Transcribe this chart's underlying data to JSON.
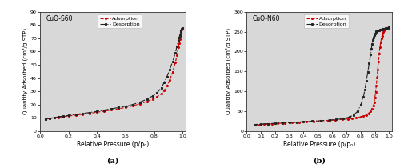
{
  "panel_a": {
    "label": "CuO-S60",
    "xlabel": "Relative Pressure (p/pₒ)",
    "ylabel": "Quantity Adsorbed (cm³/g STP)",
    "ylim": [
      0,
      90
    ],
    "xlim": [
      0.0,
      1.02
    ],
    "yticks": [
      0,
      10,
      20,
      30,
      40,
      50,
      60,
      70,
      80,
      90
    ],
    "xticks": [
      0.0,
      0.2,
      0.4,
      0.6,
      0.8,
      1.0
    ],
    "adsorption_color": "#cc0000",
    "desorption_color": "#222222",
    "legend_label_ads": "Adsorption",
    "legend_label_des": "Desorption",
    "p_ads": [
      0.04,
      0.07,
      0.1,
      0.13,
      0.16,
      0.2,
      0.25,
      0.3,
      0.35,
      0.4,
      0.45,
      0.5,
      0.55,
      0.6,
      0.65,
      0.7,
      0.75,
      0.79,
      0.82,
      0.85,
      0.87,
      0.89,
      0.91,
      0.93,
      0.95,
      0.96,
      0.97,
      0.975,
      0.98,
      0.985,
      0.99,
      0.995,
      1.0
    ],
    "q_ads": [
      9.0,
      9.5,
      10.0,
      10.4,
      10.8,
      11.3,
      12.0,
      12.7,
      13.4,
      14.2,
      15.0,
      15.9,
      16.8,
      17.8,
      19.0,
      20.5,
      22.3,
      24.0,
      25.8,
      28.0,
      30.5,
      34.0,
      38.5,
      44.5,
      52.0,
      57.0,
      63.0,
      66.5,
      69.5,
      72.0,
      74.5,
      76.5,
      78.0
    ],
    "p_des": [
      1.0,
      0.995,
      0.99,
      0.985,
      0.98,
      0.975,
      0.97,
      0.96,
      0.95,
      0.93,
      0.91,
      0.89,
      0.87,
      0.85,
      0.82,
      0.79,
      0.75,
      0.7,
      0.65,
      0.6,
      0.55,
      0.5,
      0.45,
      0.4,
      0.35,
      0.3,
      0.25,
      0.2,
      0.16,
      0.13,
      0.1,
      0.07,
      0.04
    ],
    "q_des": [
      78.0,
      77.0,
      76.0,
      74.5,
      72.5,
      70.5,
      68.0,
      64.0,
      59.0,
      52.5,
      46.5,
      41.0,
      36.5,
      32.5,
      28.8,
      26.5,
      24.0,
      21.8,
      20.0,
      18.8,
      17.7,
      16.8,
      15.8,
      14.8,
      14.0,
      13.3,
      12.5,
      11.8,
      11.2,
      10.7,
      10.2,
      9.7,
      9.2
    ]
  },
  "panel_b": {
    "label": "CuO-N60",
    "xlabel": "Relative Pressure (p/pₒ)",
    "ylabel": "Quantity Adsorbed (cm³/g STP)",
    "ylim": [
      0,
      300
    ],
    "xlim": [
      0.0,
      1.02
    ],
    "yticks": [
      0,
      50,
      100,
      150,
      200,
      250,
      300
    ],
    "xticks": [
      0.0,
      0.1,
      0.2,
      0.3,
      0.4,
      0.5,
      0.6,
      0.7,
      0.8,
      0.9,
      1.0
    ],
    "adsorption_color": "#cc0000",
    "desorption_color": "#222222",
    "legend_label_ads": "Adsorption",
    "legend_label_des": "Desorption",
    "p_ads": [
      0.06,
      0.09,
      0.12,
      0.15,
      0.18,
      0.22,
      0.27,
      0.32,
      0.37,
      0.42,
      0.47,
      0.52,
      0.57,
      0.62,
      0.67,
      0.71,
      0.74,
      0.77,
      0.8,
      0.82,
      0.84,
      0.855,
      0.87,
      0.88,
      0.89,
      0.895,
      0.9,
      0.905,
      0.91,
      0.915,
      0.92,
      0.925,
      0.93,
      0.935,
      0.94,
      0.945,
      0.95,
      0.955,
      0.96,
      0.965,
      0.97,
      0.975,
      0.98,
      0.985,
      0.99,
      0.995,
      1.0
    ],
    "q_ads": [
      15.0,
      16.0,
      16.8,
      17.5,
      18.2,
      19.2,
      20.3,
      21.4,
      22.5,
      23.5,
      24.5,
      25.5,
      26.6,
      27.8,
      29.2,
      30.5,
      31.8,
      33.3,
      35.5,
      37.5,
      40.5,
      44.5,
      50.0,
      56.0,
      64.0,
      72.0,
      84.0,
      98.0,
      115.0,
      135.0,
      155.0,
      175.0,
      194.0,
      210.0,
      222.0,
      232.0,
      240.0,
      246.0,
      250.0,
      253.0,
      255.0,
      257.0,
      258.5,
      259.5,
      260.0,
      260.5,
      261.0
    ],
    "p_des": [
      1.0,
      0.995,
      0.99,
      0.985,
      0.98,
      0.975,
      0.97,
      0.965,
      0.96,
      0.955,
      0.95,
      0.945,
      0.94,
      0.935,
      0.93,
      0.925,
      0.92,
      0.915,
      0.91,
      0.905,
      0.9,
      0.895,
      0.89,
      0.885,
      0.88,
      0.875,
      0.87,
      0.86,
      0.85,
      0.84,
      0.83,
      0.82,
      0.8,
      0.78,
      0.75,
      0.72,
      0.68,
      0.63,
      0.58,
      0.52,
      0.46,
      0.4,
      0.35,
      0.3,
      0.25,
      0.2,
      0.15,
      0.1,
      0.06
    ],
    "q_des": [
      261.0,
      260.5,
      260.0,
      259.5,
      259.0,
      258.5,
      258.0,
      257.5,
      257.0,
      256.5,
      256.0,
      255.5,
      255.0,
      254.5,
      254.0,
      253.5,
      253.0,
      252.0,
      250.5,
      248.5,
      246.0,
      242.0,
      236.0,
      228.0,
      218.0,
      206.0,
      192.0,
      170.0,
      148.0,
      126.0,
      105.0,
      86.0,
      65.0,
      50.0,
      40.0,
      35.0,
      31.5,
      29.0,
      27.5,
      26.0,
      24.8,
      23.5,
      22.5,
      21.5,
      20.5,
      19.5,
      18.5,
      17.5,
      16.5
    ]
  },
  "subtitle_a": "(a)",
  "subtitle_b": "(b)",
  "background_color": "#d8d8d8"
}
